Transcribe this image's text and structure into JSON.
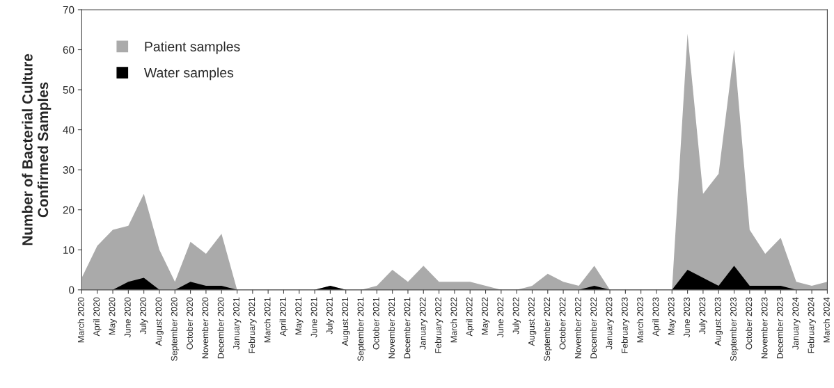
{
  "chart_data": {
    "type": "area",
    "ylabel": "Number of Bacterial Culture\nConfirmed Samples",
    "categories": [
      "March 2020",
      "April 2020",
      "May 2020",
      "June 2020",
      "July 2020",
      "August 2020",
      "September 2020",
      "October 2020",
      "November 2020",
      "December 2020",
      "January 2021",
      "February 2021",
      "March 2021",
      "April 2021",
      "May 2021",
      "June 2021",
      "July 2021",
      "August 2021",
      "September 2021",
      "October 2021",
      "November 2021",
      "December 2021",
      "January 2022",
      "February 2022",
      "March 2022",
      "April 2022",
      "May 2022",
      "June 2022",
      "July 2022",
      "August 2022",
      "September 2022",
      "October 2022",
      "November 2022",
      "December 2022",
      "January 2023",
      "February 2023",
      "March 2023",
      "April 2023",
      "May 2023",
      "June 2023",
      "July 2023",
      "August 2023",
      "September 2023",
      "October 2023",
      "November 2023",
      "December 2023",
      "January 2024",
      "February 2024",
      "March 2024"
    ],
    "series": [
      {
        "name": "Patient samples",
        "color": "#aaaaaa",
        "values": [
          3,
          11,
          15,
          16,
          24,
          10,
          2,
          12,
          9,
          14,
          0,
          0,
          0,
          0,
          0,
          0,
          1,
          0,
          0,
          1,
          5,
          2,
          6,
          2,
          2,
          2,
          1,
          0,
          0,
          1,
          4,
          2,
          1,
          6,
          0,
          0,
          0,
          0,
          0,
          64,
          24,
          29,
          60,
          15,
          9,
          13,
          2,
          1,
          2
        ]
      },
      {
        "name": "Water samples",
        "color": "#000000",
        "values": [
          0,
          0,
          0,
          2,
          3,
          0,
          0,
          2,
          1,
          1,
          0,
          0,
          0,
          0,
          0,
          0,
          1,
          0,
          0,
          0,
          0,
          0,
          0,
          0,
          0,
          0,
          0,
          0,
          0,
          0,
          0,
          0,
          0,
          1,
          0,
          0,
          0,
          0,
          0,
          5,
          3,
          1,
          6,
          1,
          1,
          1,
          0,
          0,
          0
        ]
      }
    ],
    "ylim": [
      0,
      70
    ],
    "yticks": [
      0,
      10,
      20,
      30,
      40,
      50,
      60,
      70
    ],
    "grid": false,
    "legend": "top left"
  }
}
